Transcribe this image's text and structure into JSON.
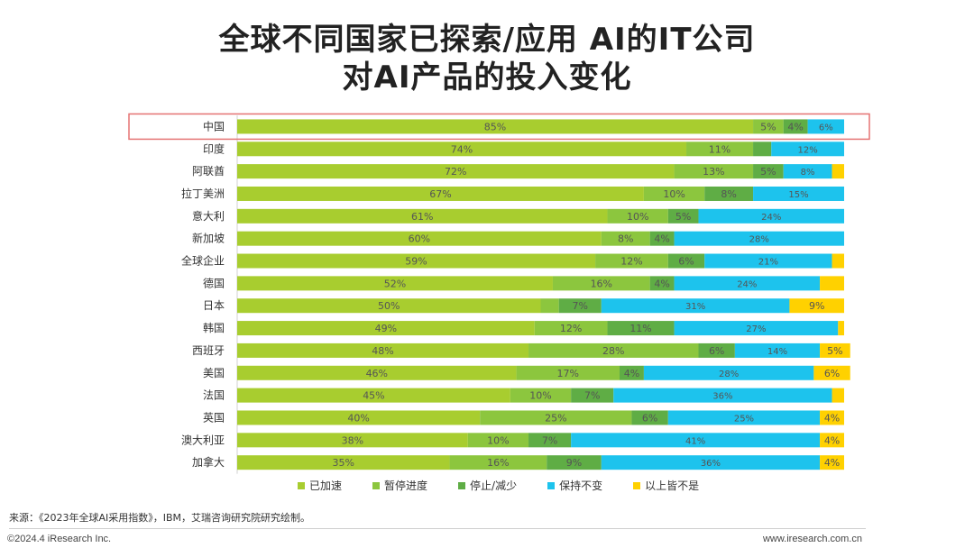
{
  "title": {
    "line1": "全球不同国家已探索/应用 AI的IT公司",
    "line2": "对AI产品的投入变化"
  },
  "chart_data": {
    "type": "bar",
    "orientation": "horizontal",
    "stacked": true,
    "xlim": [
      0,
      100
    ],
    "categories": [
      "中国",
      "印度",
      "阿联酋",
      "拉丁美洲",
      "意大利",
      "新加坡",
      "全球企业",
      "德国",
      "日本",
      "韩国",
      "西班牙",
      "美国",
      "法国",
      "英国",
      "澳大利亚",
      "加拿大"
    ],
    "series": [
      {
        "name": "已加速",
        "color": "#a8cd2f",
        "values": [
          85,
          74,
          72,
          67,
          61,
          60,
          59,
          52,
          50,
          49,
          48,
          46,
          45,
          40,
          38,
          35
        ]
      },
      {
        "name": "暂停进度",
        "color": "#8cc63e",
        "values": [
          5,
          11,
          13,
          10,
          10,
          8,
          12,
          16,
          3,
          12,
          28,
          17,
          10,
          25,
          10,
          16
        ]
      },
      {
        "name": "停止/减少",
        "color": "#5fad45",
        "values": [
          4,
          3,
          5,
          8,
          5,
          4,
          6,
          4,
          7,
          11,
          6,
          4,
          7,
          6,
          7,
          9
        ]
      },
      {
        "name": "保持不变",
        "color": "#1dc3ed",
        "values": [
          6,
          12,
          8,
          15,
          24,
          28,
          21,
          24,
          31,
          27,
          14,
          28,
          36,
          25,
          41,
          36
        ]
      },
      {
        "name": "以上皆不是",
        "color": "#ffd100",
        "values": [
          0,
          0,
          2,
          0,
          0,
          0,
          2,
          4,
          9,
          1,
          5,
          6,
          2,
          4,
          4,
          4
        ]
      }
    ],
    "labels": [
      [
        "85%",
        "5%",
        "4%",
        "6%",
        ""
      ],
      [
        "74%",
        "11%",
        "",
        "12%",
        ""
      ],
      [
        "72%",
        "13%",
        "5%",
        "8%",
        ""
      ],
      [
        "67%",
        "10%",
        "8%",
        "15%",
        ""
      ],
      [
        "61%",
        "10%",
        "5%",
        "24%",
        ""
      ],
      [
        "60%",
        "8%",
        "4%",
        "28%",
        ""
      ],
      [
        "59%",
        "12%",
        "6%",
        "21%",
        ""
      ],
      [
        "52%",
        "16%",
        "4%",
        "24%",
        ""
      ],
      [
        "50%",
        "",
        "7%",
        "31%",
        "9%"
      ],
      [
        "49%",
        "12%",
        "11%",
        "27%",
        ""
      ],
      [
        "48%",
        "28%",
        "6%",
        "14%",
        "5%"
      ],
      [
        "46%",
        "17%",
        "4%",
        "28%",
        "6%"
      ],
      [
        "45%",
        "10%",
        "7%",
        "36%",
        ""
      ],
      [
        "40%",
        "25%",
        "6%",
        "25%",
        "4%"
      ],
      [
        "38%",
        "10%",
        "7%",
        "41%",
        "4%"
      ],
      [
        "35%",
        "16%",
        "9%",
        "36%",
        "4%"
      ]
    ],
    "highlight_category": "中国",
    "highlight_color": "#e57373"
  },
  "source": "来源：《2023年全球AI采用指数》，IBM，艾瑞咨询研究院研究绘制。",
  "copyright": "©2024.4 iResearch Inc.",
  "site": "www.iresearch.com.cn"
}
